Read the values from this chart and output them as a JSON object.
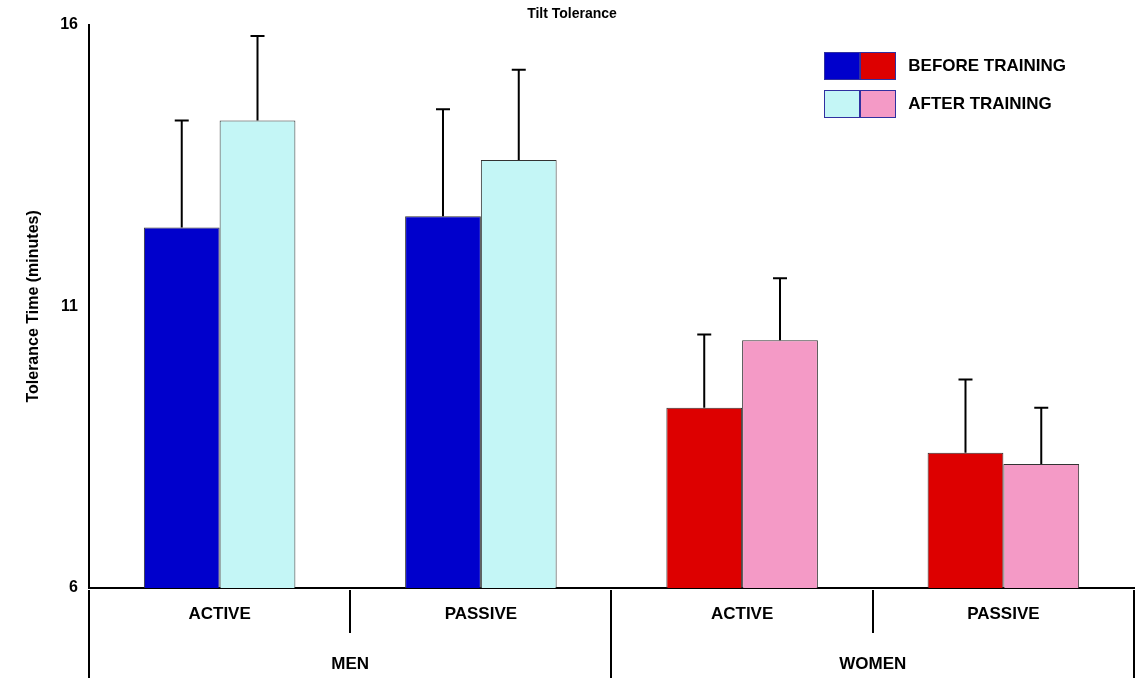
{
  "chart_data": {
    "type": "bar",
    "title": "Tilt Tolerance",
    "ylabel": "Tolerance Time (minutes)",
    "categories": [
      "ACTIVE",
      "PASSIVE",
      "ACTIVE",
      "PASSIVE"
    ],
    "annotations": [
      "MEN",
      "WOMEN"
    ],
    "series": [
      {
        "name": "BEFORE TRAINING",
        "colors": [
          "#0000cc",
          "#0000cc",
          "#dd0000",
          "#dd0000"
        ],
        "values": [
          12.4,
          12.6,
          9.2,
          8.4
        ],
        "errors": [
          [
            12.4,
            14.3
          ],
          [
            12.6,
            14.5
          ],
          [
            9.2,
            10.5
          ],
          [
            8.4,
            9.7
          ]
        ]
      },
      {
        "name": "AFTER TRAINING",
        "colors": [
          "#c4f6f6",
          "#c4f6f6",
          "#f49ac6",
          "#f49ac6"
        ],
        "values": [
          14.3,
          13.6,
          10.4,
          8.2
        ],
        "errors": [
          [
            14.3,
            15.8
          ],
          [
            13.6,
            15.2
          ],
          [
            10.4,
            11.5
          ],
          [
            8.2,
            9.2
          ]
        ]
      }
    ],
    "ylim": [
      6,
      16
    ],
    "yticks": [
      6,
      11,
      16
    ],
    "grid": false,
    "legend": "top right"
  }
}
